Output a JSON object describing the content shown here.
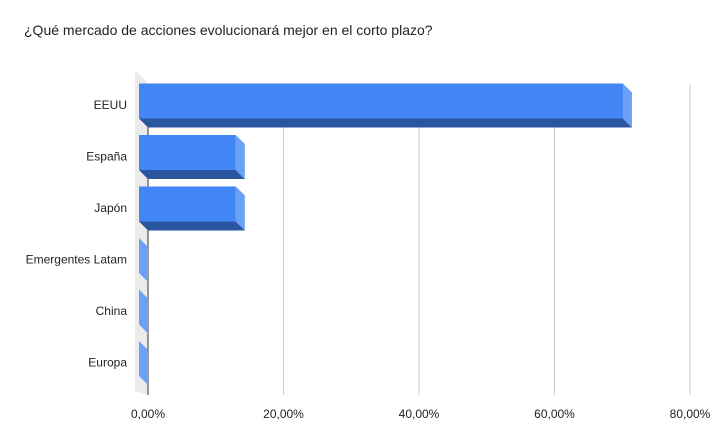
{
  "chart_data": {
    "type": "bar",
    "orientation": "horizontal",
    "style": "3d",
    "title": "¿Qué mercado de acciones evolucionará mejor en el corto plazo?",
    "categories": [
      "EEUU",
      "España",
      "Japón",
      "Emergentes Latam",
      "China",
      "Europa"
    ],
    "values": [
      71.43,
      14.29,
      14.29,
      0,
      0,
      0
    ],
    "xlim": [
      0,
      80
    ],
    "xticks": [
      "0,00%",
      "20,00%",
      "40,00%",
      "60,00%",
      "80,00%"
    ],
    "grid": true,
    "legend": "none",
    "colors": {
      "front": "#4285f4",
      "bottom": "#2a56a0",
      "side": "#6aa1f7",
      "wall": "#ebebeb",
      "grid": "#cccccc"
    }
  }
}
